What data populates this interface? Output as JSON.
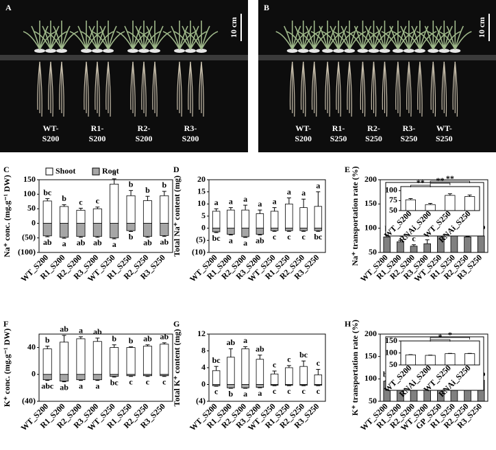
{
  "photos": [
    {
      "panel": "A",
      "scale": "10 cm",
      "labels": [
        [
          "WT-",
          "S200"
        ],
        [
          "R1-",
          "S200"
        ],
        [
          "R2-",
          "S200"
        ],
        [
          "R3-",
          "S200"
        ]
      ]
    },
    {
      "panel": "B",
      "scale": "10 cm",
      "labels": [
        [
          "WT-",
          "S200"
        ],
        [
          "R1-",
          "S250"
        ],
        [
          "R2-",
          "S250"
        ],
        [
          "R3-",
          "S250"
        ],
        [
          "WT-",
          "S250"
        ]
      ]
    }
  ],
  "chart_data": [
    {
      "type": "bar",
      "panel": "C",
      "ylabel": "Na⁺ conc. (mg.g⁻¹ DW)",
      "categories": [
        "WT_S200",
        "R1_S200",
        "R2_S200",
        "R3_S200",
        "WT_S250",
        "R1_S250",
        "R2_S250",
        "R3_S250"
      ],
      "series": [
        {
          "name": "Shoot",
          "color": "#ffffff",
          "values": [
            77,
            58,
            45,
            50,
            135,
            95,
            78,
            95
          ],
          "errors": [
            8,
            6,
            7,
            6,
            18,
            18,
            15,
            15
          ],
          "letters": [
            "bc",
            "b",
            "c",
            "c",
            "a",
            "b",
            "b",
            "b"
          ]
        },
        {
          "name": "Root",
          "color": "#a6a6a6",
          "values": [
            -43,
            -48,
            -45,
            -45,
            -50,
            -25,
            -45,
            -42
          ],
          "errors": [
            3,
            3,
            3,
            3,
            3,
            3,
            3,
            3
          ],
          "letters": [
            "ab",
            "a",
            "ab",
            "ab",
            "a",
            "b",
            "ab",
            "ab"
          ]
        }
      ],
      "ylim": [
        -100,
        150
      ],
      "yticks": [
        150,
        100,
        50,
        0,
        {
          "value": -50,
          "label": "(50)"
        },
        {
          "value": -100,
          "label": "(100)"
        }
      ],
      "legend": "top"
    },
    {
      "type": "bar",
      "panel": "D",
      "ylabel": "Total Na⁺ content (mg)",
      "categories": [
        "WT_S200",
        "R1_S200",
        "R2_S200",
        "R3_S200",
        "WT_S250",
        "R1_S250",
        "R2_S250",
        "R3_S250"
      ],
      "series": [
        {
          "color": "#ffffff",
          "values": [
            7,
            7.5,
            7.5,
            6,
            7,
            10,
            8.5,
            9
          ],
          "errors": [
            1,
            1,
            2,
            1.5,
            1.5,
            2.5,
            3.5,
            6
          ],
          "letters": [
            "a",
            "a",
            "a",
            "a",
            "a",
            "a",
            "a",
            "a"
          ]
        },
        {
          "color": "#a6a6a6",
          "values": [
            -1.5,
            -2.5,
            -3.5,
            -2.5,
            -1,
            -1,
            -1,
            -1
          ],
          "errors": [
            0.3,
            0.3,
            0.3,
            0.3,
            0.3,
            0.3,
            0.3,
            0.3
          ],
          "letters": [
            "bc",
            "a",
            "a",
            "ab",
            "c",
            "c",
            "c",
            "bc"
          ]
        }
      ],
      "ylim": [
        -10,
        20
      ],
      "yticks": [
        20,
        15,
        10,
        5,
        0,
        {
          "value": -5,
          "label": "(5)"
        },
        {
          "value": -10,
          "label": "(10)"
        }
      ]
    },
    {
      "type": "bar",
      "panel": "E",
      "ylabel": "Na⁺ transportation rate (%)",
      "categories": [
        "WT_S200",
        "R1_S200",
        "R2_S200",
        "R3_S200",
        "WT_S250",
        "R1_S250",
        "R2_S250",
        "R3_S250"
      ],
      "series": [
        {
          "color": "#808080",
          "values": [
            82,
            72,
            63,
            68,
            88,
            93,
            82,
            84
          ],
          "errors": [
            4,
            3,
            3,
            8,
            10,
            6,
            1,
            6
          ],
          "letters": [
            "b",
            "c",
            "c",
            "c",
            "ab",
            "a",
            "b",
            "ab"
          ]
        }
      ],
      "ylim": [
        50,
        200
      ],
      "yticks": [
        50,
        100,
        150,
        200
      ],
      "inset": {
        "categories": [
          "WT_S200",
          "RNAi_S200",
          "WT_S250",
          "RNAi_S250"
        ],
        "values": [
          77,
          65,
          88,
          85
        ],
        "errors": [
          3,
          3,
          4,
          4
        ],
        "color": "#ffffff",
        "ylim": [
          50,
          110
        ],
        "yticks": [
          50,
          75,
          100
        ],
        "annotations": [
          "**",
          "**",
          "**"
        ]
      }
    },
    {
      "type": "bar",
      "panel": "F",
      "ylabel": "K⁺ conc. (mg.g⁻¹ DW)",
      "categories": [
        "WT_S200",
        "R1_S200",
        "R2_S200",
        "R3_S200",
        "WT_S250",
        "R1_S250",
        "R2_S250",
        "R3_S250"
      ],
      "series": [
        {
          "color": "#ffffff",
          "values": [
            38,
            48,
            53,
            49,
            40,
            40,
            42,
            45
          ],
          "errors": [
            4,
            10,
            3,
            5,
            4,
            1,
            2,
            2
          ],
          "letters": [
            "b",
            "ab",
            "a",
            "ab",
            "b",
            "b",
            "ab",
            "ab"
          ]
        },
        {
          "color": "#a6a6a6",
          "values": [
            -8,
            -10,
            -8,
            -8,
            -3,
            -2,
            -2,
            -2
          ],
          "errors": [
            1,
            1,
            1,
            1,
            1,
            1,
            1,
            1
          ],
          "letters": [
            "abc",
            "ab",
            "a",
            "a",
            "bc",
            "c",
            "c",
            "c"
          ]
        }
      ],
      "ylim": [
        -40,
        60
      ],
      "yticks": [
        40,
        0,
        {
          "value": -40,
          "label": "(40)"
        }
      ]
    },
    {
      "type": "bar",
      "panel": "G",
      "ylabel": "Total K⁺ content (mg)",
      "categories": [
        "WT_S200",
        "R1_S200",
        "R2_S200",
        "R3_S200",
        "WT_S250",
        "R1_S250",
        "R2_S250",
        "R3_S250"
      ],
      "series": [
        {
          "color": "#ffffff",
          "values": [
            3.3,
            6.5,
            8.5,
            6,
            2.5,
            4,
            4.3,
            2.3
          ],
          "errors": [
            1,
            2,
            0.5,
            1,
            0.7,
            0.5,
            1.3,
            1.3
          ],
          "letters": [
            "bc",
            "ab",
            "a",
            "ab",
            "c",
            "c",
            "bc",
            "c"
          ]
        },
        {
          "color": "#a6a6a6",
          "values": [
            -0.3,
            -0.8,
            -0.8,
            -0.7,
            -0.2,
            -0.2,
            -0.2,
            -0.2
          ],
          "errors": [
            0.1,
            0.1,
            0.1,
            0.1,
            0.1,
            0.1,
            0.1,
            0.1
          ],
          "letters": [
            "c",
            "b",
            "a",
            "a",
            "c",
            "c",
            "c",
            "c"
          ]
        }
      ],
      "ylim": [
        -4,
        12
      ],
      "yticks": [
        12,
        8,
        4,
        0,
        {
          "value": -4,
          "label": "(4)"
        }
      ]
    },
    {
      "type": "bar",
      "panel": "H",
      "ylabel": "K⁺ transportation rate (%)",
      "categories": [
        "WT_S200",
        "R1_S200",
        "R2_S200",
        "WT_S200",
        "GP_S250",
        "R1_S250",
        "R2_S250",
        "R3_S250"
      ],
      "series": [
        {
          "color": "#808080",
          "values": [
            95,
            92,
            91,
            92,
            97,
            98,
            97,
            97
          ],
          "errors": [
            1,
            1,
            1,
            1,
            1,
            1,
            1,
            1
          ],
          "letters": [
            "bc",
            "c",
            "c",
            "c",
            "ab",
            "a",
            "ab",
            "ab"
          ]
        }
      ],
      "ylim": [
        50,
        200
      ],
      "yticks": [
        50,
        100,
        150,
        200
      ],
      "inset": {
        "categories": [
          "WT_S200",
          "RNAi_S200",
          "WT_S250",
          "RNAi_S250"
        ],
        "values": [
          92,
          90,
          97,
          97
        ],
        "errors": [
          1,
          1,
          1,
          1
        ],
        "color": "#ffffff",
        "ylim": [
          50,
          150
        ],
        "yticks": [
          50,
          100,
          150
        ],
        "annotations": [
          "*",
          "*"
        ]
      }
    }
  ]
}
